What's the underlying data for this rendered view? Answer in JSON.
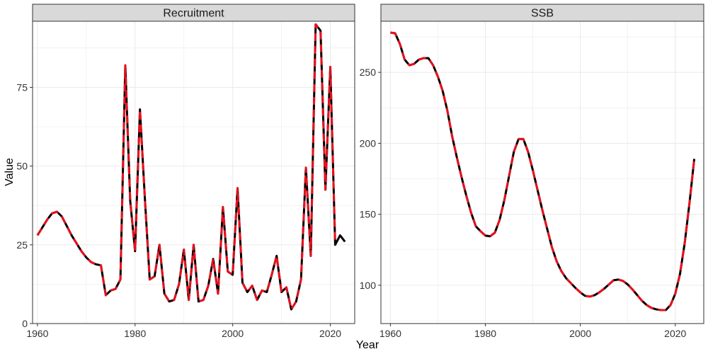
{
  "axis_labels": {
    "x": "Year",
    "y": "Value"
  },
  "colors": {
    "series_a": "#000000",
    "series_b": "#e8101e",
    "strip_fill": "#d9d9d9",
    "strip_border": "#333333",
    "grid": "#ebebeb",
    "panel_border": "#333333"
  },
  "chart_data": [
    {
      "type": "line",
      "title": "Recruitment",
      "xlabel": "Year",
      "ylabel": "Value",
      "xlim": [
        1959,
        2025
      ],
      "ylim": [
        0,
        96
      ],
      "xticks": [
        "1960",
        "1980",
        "2000",
        "2020"
      ],
      "yticks": [
        "0",
        "25",
        "50",
        "75"
      ],
      "x": [
        1960,
        1961,
        1962,
        1963,
        1964,
        1965,
        1966,
        1967,
        1968,
        1969,
        1970,
        1971,
        1972,
        1973,
        1974,
        1975,
        1976,
        1977,
        1978,
        1979,
        1980,
        1981,
        1982,
        1983,
        1984,
        1985,
        1986,
        1987,
        1988,
        1989,
        1990,
        1991,
        1992,
        1993,
        1994,
        1995,
        1996,
        1997,
        1998,
        1999,
        2000,
        2001,
        2002,
        2003,
        2004,
        2005,
        2006,
        2007,
        2008,
        2009,
        2010,
        2011,
        2012,
        2013,
        2014,
        2015,
        2016,
        2017,
        2018,
        2019,
        2020,
        2021,
        2022,
        2023,
        2024
      ],
      "series": [
        {
          "values": [
            28,
            30.5,
            33,
            35,
            35.5,
            34,
            31,
            28,
            25.5,
            23,
            21,
            19.5,
            18.8,
            18.5,
            9,
            10.5,
            11,
            14,
            82,
            39,
            23,
            68,
            40,
            14,
            15,
            25,
            9.5,
            7,
            7.5,
            12.5,
            23.5,
            7.5,
            25,
            7,
            7.5,
            12,
            20.5,
            9.5,
            37,
            16.5,
            15.5,
            43,
            13,
            10,
            12,
            7.5,
            10.5,
            10,
            15.5,
            21.5,
            10,
            11.5,
            4.5,
            7,
            14,
            49.5,
            21.5,
            95,
            93,
            42.5,
            81.5,
            25,
            28,
            26,
            null
          ]
        },
        {
          "values": [
            28,
            30.5,
            33,
            35,
            35.5,
            34,
            31,
            28,
            25.5,
            23,
            21,
            19.5,
            18.8,
            18.5,
            9,
            10.5,
            11,
            14,
            82,
            39,
            23,
            68,
            40,
            14,
            15,
            25,
            9.5,
            7,
            7.5,
            12.5,
            23.5,
            7.5,
            25,
            7,
            7.5,
            12,
            20.5,
            9.5,
            37,
            16.5,
            15.5,
            43,
            13,
            10,
            12,
            7.5,
            10.5,
            10,
            15.5,
            21.5,
            10,
            11.5,
            4.5,
            7,
            14,
            49.5,
            21.5,
            95,
            93,
            42.5,
            81.5,
            25,
            null,
            null,
            null
          ]
        }
      ]
    },
    {
      "type": "line",
      "title": "SSB",
      "xlabel": "Year",
      "ylabel": "Value",
      "xlim": [
        1958,
        2026
      ],
      "ylim": [
        73,
        286
      ],
      "xticks": [
        "1960",
        "1980",
        "2000",
        "2020"
      ],
      "yticks": [
        "100",
        "150",
        "200",
        "250"
      ],
      "x": [
        1960,
        1961,
        1962,
        1963,
        1964,
        1965,
        1966,
        1967,
        1968,
        1969,
        1970,
        1971,
        1972,
        1973,
        1974,
        1975,
        1976,
        1977,
        1978,
        1979,
        1980,
        1981,
        1982,
        1983,
        1984,
        1985,
        1986,
        1987,
        1988,
        1989,
        1990,
        1991,
        1992,
        1993,
        1994,
        1995,
        1996,
        1997,
        1998,
        1999,
        2000,
        2001,
        2002,
        2003,
        2004,
        2005,
        2006,
        2007,
        2008,
        2009,
        2010,
        2011,
        2012,
        2013,
        2014,
        2015,
        2016,
        2017,
        2018,
        2019,
        2020,
        2021,
        2022,
        2023,
        2024
      ],
      "series": [
        {
          "values": [
            278,
            277.5,
            270,
            259,
            255,
            256,
            259,
            260,
            260,
            255,
            247,
            237,
            223,
            205,
            190,
            176,
            163,
            151,
            141.5,
            138,
            135,
            134.5,
            137,
            146,
            160,
            177,
            194,
            203,
            203,
            194,
            181,
            167,
            153,
            140,
            127,
            117,
            110,
            105,
            101.5,
            98,
            95,
            92.5,
            92,
            93,
            95,
            97.5,
            100.5,
            103.5,
            104,
            103,
            100.5,
            97,
            93,
            89,
            86,
            84,
            83,
            82.5,
            82.5,
            86,
            94,
            108,
            130,
            158,
            189
          ]
        },
        {
          "values": [
            278,
            277.5,
            270,
            259,
            255,
            256,
            259,
            260,
            260,
            255,
            247,
            237,
            223,
            205,
            190,
            176,
            163,
            151,
            141.5,
            138,
            135,
            134.5,
            137,
            146,
            160,
            177,
            194,
            203,
            203,
            194,
            181,
            167,
            153,
            140,
            127,
            117,
            110,
            105,
            101.5,
            98,
            95,
            92.5,
            92,
            93,
            95,
            97.5,
            100.5,
            103.5,
            104,
            103,
            100.5,
            97,
            93,
            89,
            86,
            84,
            83,
            82.5,
            82.5,
            86,
            94,
            108,
            130,
            158,
            189
          ]
        }
      ]
    }
  ]
}
